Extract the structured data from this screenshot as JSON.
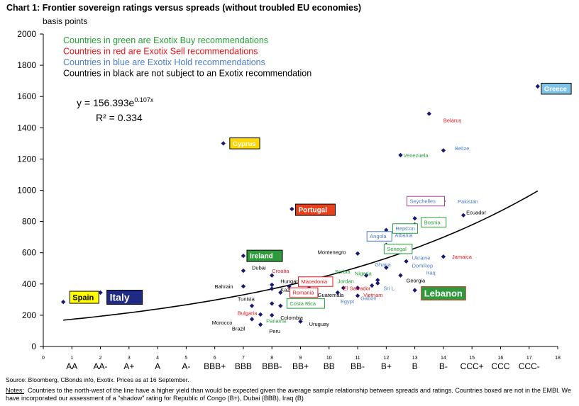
{
  "title": "Chart 1: Frontier sovereign ratings versus spreads (without troubled EU economies)",
  "source": "Source: Bloomberg, CBonds info, Exotix. Prices as at 16 September.",
  "notes": {
    "label": "Notes:",
    "text": "Countries to the north-west of the line have a higher yield than would be expected given the average sample relationship between spreads and ratings. Countries boxed are not in the EMBI. We have incorporated our assessment of a \"shadow\" rating for Republic of Congo (B+), Dubai (BBB), Iraq (B)"
  },
  "colors": {
    "buy": "#22a035",
    "sell": "#e8141a",
    "hold": "#4a7cc9",
    "none": "#000000",
    "marker": "#1a1a72",
    "greece_box": "#7fc3e6",
    "cyprus_box": "#ffd700",
    "portugal_box": "#e8401c",
    "ireland_box": "#2e9a3c",
    "spain_box": "#ffff00",
    "italy_box": "#1f2a84"
  },
  "chart_data": {
    "type": "scatter",
    "ylabel": "basis points",
    "ylim": [
      0,
      2000
    ],
    "xlim": [
      0,
      18
    ],
    "yticks": [
      0,
      200,
      400,
      600,
      800,
      1000,
      1200,
      1400,
      1600,
      1800,
      2000
    ],
    "xticks_numeric": [
      "0",
      "1",
      "2",
      "3",
      "4",
      "5",
      "6",
      "7",
      "8",
      "9",
      "10",
      "11",
      "12",
      "13",
      "14",
      "15",
      "16",
      "17",
      "18"
    ],
    "rating_labels": [
      "AA",
      "AA-",
      "A+",
      "A",
      "A-",
      "BBB+",
      "BBB",
      "BBB-",
      "BB+",
      "BB",
      "BB-",
      "B+",
      "B",
      "B-",
      "CCC+",
      "CCC",
      "CCC-"
    ],
    "legend": [
      {
        "text": "Countries in green are Exotix Buy recommendations",
        "color": "#22a035"
      },
      {
        "text": "Countries in red are Exotix Sell recommendations",
        "color": "#e8141a"
      },
      {
        "text": "Countries in blue are Exotix Hold recommendations",
        "color": "#4a7cc9"
      },
      {
        "text": "Countries in black are not subject to an Exotix recommendation",
        "color": "#000000"
      }
    ],
    "equation": "y = 156.393e",
    "equation_exp": "0.107x",
    "r_squared": "R² = 0.334",
    "trendline": {
      "a": 156.393,
      "b": 0.107,
      "x_from": 0.7,
      "x_to": 17.3
    },
    "points": [
      {
        "x": 0.7,
        "y": 285
      },
      {
        "x": 2.0,
        "y": 345
      },
      {
        "x": 6.3,
        "y": 1300
      },
      {
        "x": 8.7,
        "y": 880
      },
      {
        "x": 7.0,
        "y": 580
      },
      {
        "x": 7.0,
        "y": 485
      },
      {
        "x": 7.0,
        "y": 385
      },
      {
        "x": 7.3,
        "y": 175
      },
      {
        "x": 7.3,
        "y": 260
      },
      {
        "x": 7.6,
        "y": 205
      },
      {
        "x": 7.6,
        "y": 140
      },
      {
        "x": 8.0,
        "y": 455
      },
      {
        "x": 8.0,
        "y": 395
      },
      {
        "x": 8.0,
        "y": 370
      },
      {
        "x": 8.0,
        "y": 275
      },
      {
        "x": 8.0,
        "y": 200
      },
      {
        "x": 8.3,
        "y": 345
      },
      {
        "x": 8.3,
        "y": 260
      },
      {
        "x": 8.6,
        "y": 385
      },
      {
        "x": 8.6,
        "y": 290
      },
      {
        "x": 9.0,
        "y": 345
      },
      {
        "x": 9.0,
        "y": 160
      },
      {
        "x": 9.3,
        "y": 375
      },
      {
        "x": 10.0,
        "y": 425
      },
      {
        "x": 10.0,
        "y": 405
      },
      {
        "x": 10.3,
        "y": 345
      },
      {
        "x": 10.5,
        "y": 375
      },
      {
        "x": 11.0,
        "y": 595
      },
      {
        "x": 11.0,
        "y": 375
      },
      {
        "x": 11.0,
        "y": 325
      },
      {
        "x": 11.3,
        "y": 455
      },
      {
        "x": 11.5,
        "y": 390
      },
      {
        "x": 11.7,
        "y": 405
      },
      {
        "x": 11.7,
        "y": 425
      },
      {
        "x": 12.0,
        "y": 650
      },
      {
        "x": 12.0,
        "y": 745
      },
      {
        "x": 12.0,
        "y": 715
      },
      {
        "x": 12.0,
        "y": 505
      },
      {
        "x": 12.5,
        "y": 1225
      },
      {
        "x": 12.5,
        "y": 455
      },
      {
        "x": 12.7,
        "y": 545
      },
      {
        "x": 13.0,
        "y": 780
      },
      {
        "x": 13.0,
        "y": 820
      },
      {
        "x": 13.0,
        "y": 930
      },
      {
        "x": 13.0,
        "y": 360
      },
      {
        "x": 13.5,
        "y": 1490
      },
      {
        "x": 14.0,
        "y": 1255
      },
      {
        "x": 14.0,
        "y": 930
      },
      {
        "x": 14.0,
        "y": 575
      },
      {
        "x": 14.7,
        "y": 840
      },
      {
        "x": 17.3,
        "y": 1665
      }
    ],
    "labels": [
      {
        "text": "Greece",
        "x": 17.5,
        "y": 1650,
        "cls": "hold",
        "box": "greece"
      },
      {
        "text": "Belarus",
        "x": 14.0,
        "y": 1450,
        "cls": "sell"
      },
      {
        "text": "Belize",
        "x": 14.4,
        "y": 1270,
        "cls": "hold"
      },
      {
        "text": "Venezuela",
        "x": 12.6,
        "y": 1225,
        "cls": "buy"
      },
      {
        "text": "Cyprus",
        "x": 6.6,
        "y": 1300,
        "cls": "none",
        "box": "cyprus"
      },
      {
        "text": "Pakistan",
        "x": 14.5,
        "y": 930,
        "cls": "hold"
      },
      {
        "text": "Ecuador",
        "x": 14.8,
        "y": 860,
        "cls": "none"
      },
      {
        "text": "Seychelles",
        "x": 12.8,
        "y": 930,
        "cls": "hold",
        "box": "outline-purple"
      },
      {
        "text": "Argentina",
        "x": 13.3,
        "y": 820,
        "cls": "hold"
      },
      {
        "text": "Bosnia",
        "x": 13.3,
        "y": 795,
        "cls": "buy",
        "box": "outline-green"
      },
      {
        "text": "Portugal",
        "x": 8.9,
        "y": 875,
        "cls": "none",
        "box": "portugal"
      },
      {
        "text": "RepCon",
        "x": 12.3,
        "y": 755,
        "cls": "hold",
        "box": "outline-green"
      },
      {
        "text": "Albania",
        "x": 12.3,
        "y": 715,
        "cls": "hold"
      },
      {
        "text": "Angola",
        "x": 11.4,
        "y": 705,
        "cls": "hold",
        "box": "outline-blue"
      },
      {
        "text": "Senegal",
        "x": 12.0,
        "y": 625,
        "cls": "buy",
        "box": "outline-green"
      },
      {
        "text": "Montenegro",
        "x": 9.6,
        "y": 605,
        "cls": "none"
      },
      {
        "text": "Ireland",
        "x": 7.2,
        "y": 580,
        "cls": "none",
        "box": "ireland"
      },
      {
        "text": "Ukraine",
        "x": 12.9,
        "y": 570,
        "cls": "hold"
      },
      {
        "text": "Jamaica",
        "x": 14.3,
        "y": 575,
        "cls": "sell"
      },
      {
        "text": "Ghana",
        "x": 11.6,
        "y": 525,
        "cls": "hold"
      },
      {
        "text": "DomRep",
        "x": 12.9,
        "y": 520,
        "cls": "hold"
      },
      {
        "text": "Dubai",
        "x": 7.3,
        "y": 505,
        "cls": "none"
      },
      {
        "text": "Serbia",
        "x": 10.2,
        "y": 480,
        "cls": "buy"
      },
      {
        "text": "Croatia",
        "x": 8.0,
        "y": 485,
        "cls": "sell"
      },
      {
        "text": "Nigeria",
        "x": 10.9,
        "y": 470,
        "cls": "buy"
      },
      {
        "text": "Iraq",
        "x": 13.4,
        "y": 475,
        "cls": "hold"
      },
      {
        "text": "Georgia",
        "x": 12.7,
        "y": 425,
        "cls": "none"
      },
      {
        "text": "Hungary",
        "x": 8.3,
        "y": 420,
        "cls": "none"
      },
      {
        "text": "Macedonia",
        "x": 9.0,
        "y": 415,
        "cls": "sell",
        "box": "outline-red"
      },
      {
        "text": "Jordan",
        "x": 10.3,
        "y": 420,
        "cls": "buy"
      },
      {
        "text": "El Salvador",
        "x": 10.5,
        "y": 375,
        "cls": "sell"
      },
      {
        "text": "Sri L.",
        "x": 11.9,
        "y": 375,
        "cls": "hold"
      },
      {
        "text": "Bahrain",
        "x": 6.0,
        "y": 385,
        "cls": "none"
      },
      {
        "text": "Kazak",
        "x": 8.3,
        "y": 365,
        "cls": "none"
      },
      {
        "text": "Romania",
        "x": 8.7,
        "y": 345,
        "cls": "sell",
        "box": "outline-red"
      },
      {
        "text": "Guatemala",
        "x": 9.6,
        "y": 330,
        "cls": "none"
      },
      {
        "text": "Vietnam",
        "x": 11.2,
        "y": 330,
        "cls": "sell"
      },
      {
        "text": "Gabon",
        "x": 11.1,
        "y": 310,
        "cls": "hold"
      },
      {
        "text": "Egypt",
        "x": 10.4,
        "y": 290,
        "cls": "hold"
      },
      {
        "text": "Tunisia",
        "x": 6.8,
        "y": 305,
        "cls": "none"
      },
      {
        "text": "Costa Rica",
        "x": 8.6,
        "y": 275,
        "cls": "buy",
        "box": "outline-green"
      },
      {
        "text": "Lebanon",
        "x": 13.3,
        "y": 340,
        "cls": "buy",
        "box": "lebanon"
      },
      {
        "text": "Bulgaria",
        "x": 6.8,
        "y": 215,
        "cls": "sell"
      },
      {
        "text": "Colombia",
        "x": 8.3,
        "y": 185,
        "cls": "none"
      },
      {
        "text": "Panama",
        "x": 7.8,
        "y": 165,
        "cls": "buy"
      },
      {
        "text": "Morocco",
        "x": 5.9,
        "y": 155,
        "cls": "none"
      },
      {
        "text": "Brazil",
        "x": 6.6,
        "y": 115,
        "cls": "none"
      },
      {
        "text": "Uruguay",
        "x": 9.3,
        "y": 145,
        "cls": "none"
      },
      {
        "text": "Peru",
        "x": 7.9,
        "y": 100,
        "cls": "none"
      },
      {
        "text": "Spain",
        "x": 1.0,
        "y": 315,
        "cls": "none",
        "box": "spain"
      },
      {
        "text": "Italy",
        "x": 2.3,
        "y": 315,
        "cls": "none",
        "box": "italy"
      }
    ]
  }
}
